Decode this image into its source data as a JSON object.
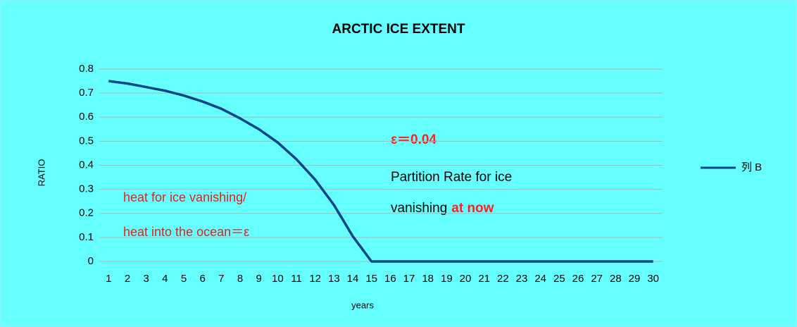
{
  "chart_data": {
    "type": "line",
    "title": "ARCTIC ICE EXTENT",
    "x_label": "years",
    "y_label": "RATIO",
    "categories": [
      "1",
      "2",
      "3",
      "4",
      "5",
      "6",
      "7",
      "8",
      "9",
      "10",
      "11",
      "12",
      "13",
      "14",
      "15",
      "16",
      "17",
      "18",
      "19",
      "20",
      "21",
      "22",
      "23",
      "24",
      "25",
      "26",
      "27",
      "28",
      "29",
      "30"
    ],
    "series": [
      {
        "name": "列 B",
        "color": "#004586",
        "values": [
          0.75,
          0.74,
          0.725,
          0.71,
          0.69,
          0.665,
          0.635,
          0.595,
          0.55,
          0.495,
          0.425,
          0.34,
          0.235,
          0.105,
          0,
          0,
          0,
          0,
          0,
          0,
          0,
          0,
          0,
          0,
          0,
          0,
          0,
          0,
          0,
          0
        ]
      }
    ],
    "ylim": [
      0,
      0.8
    ],
    "yticks": [
      0,
      0.1,
      0.2,
      0.3,
      0.4,
      0.5,
      0.6,
      0.7,
      0.8
    ],
    "grid": true,
    "legend": "right",
    "annotations": [
      "heat for ice vanishing/",
      "heat into the ocean＝ε",
      "ε＝0.04",
      "Partition Rate for ice",
      "vanishing",
      "at now"
    ]
  }
}
